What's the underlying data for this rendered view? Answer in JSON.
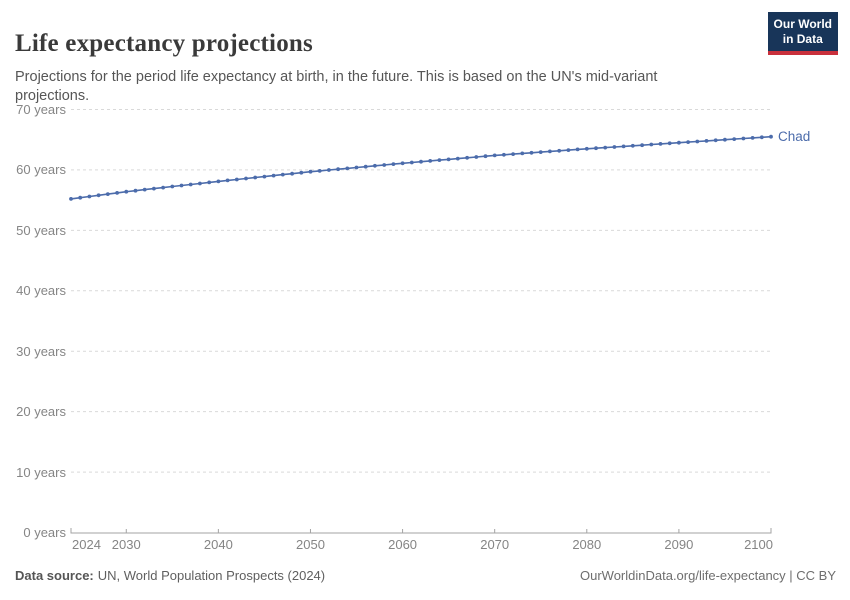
{
  "header": {
    "title": "Life expectancy projections",
    "subtitle": "Projections for the period life expectancy at birth, in the future. This is based on the UN's mid-variant projections.",
    "logo": {
      "line1": "Our World",
      "line2": "in Data"
    }
  },
  "chart_data": {
    "type": "line",
    "title": "Life expectancy projections",
    "entity": "Chad",
    "unit": "years",
    "xlim": [
      2024,
      2100
    ],
    "ylim": [
      0,
      70
    ],
    "grid": "horizontal-dashed",
    "legend_position": "end-of-line-label",
    "line_color": "#4c6cab",
    "yticks": [
      {
        "value": 0,
        "label": "0 years"
      },
      {
        "value": 10,
        "label": "10 years"
      },
      {
        "value": 20,
        "label": "20 years"
      },
      {
        "value": 30,
        "label": "30 years"
      },
      {
        "value": 40,
        "label": "40 years"
      },
      {
        "value": 50,
        "label": "50 years"
      },
      {
        "value": 60,
        "label": "60 years"
      },
      {
        "value": 70,
        "label": "70 years"
      }
    ],
    "xticks": [
      {
        "value": 2024,
        "label": "2024"
      },
      {
        "value": 2030,
        "label": "2030"
      },
      {
        "value": 2040,
        "label": "2040"
      },
      {
        "value": 2050,
        "label": "2050"
      },
      {
        "value": 2060,
        "label": "2060"
      },
      {
        "value": 2070,
        "label": "2070"
      },
      {
        "value": 2080,
        "label": "2080"
      },
      {
        "value": 2090,
        "label": "2090"
      },
      {
        "value": 2100,
        "label": "2100"
      }
    ],
    "series": [
      {
        "name": "Chad",
        "points": [
          [
            2024,
            55.2
          ],
          [
            2025,
            55.4
          ],
          [
            2026,
            55.6
          ],
          [
            2027,
            55.8
          ],
          [
            2028,
            56.0
          ],
          [
            2029,
            56.2
          ],
          [
            2030,
            56.4
          ],
          [
            2031,
            56.57
          ],
          [
            2032,
            56.74
          ],
          [
            2033,
            56.91
          ],
          [
            2034,
            57.08
          ],
          [
            2035,
            57.25
          ],
          [
            2036,
            57.42
          ],
          [
            2037,
            57.59
          ],
          [
            2038,
            57.76
          ],
          [
            2039,
            57.93
          ],
          [
            2040,
            58.1
          ],
          [
            2041,
            58.26
          ],
          [
            2042,
            58.42
          ],
          [
            2043,
            58.58
          ],
          [
            2044,
            58.74
          ],
          [
            2045,
            58.9
          ],
          [
            2046,
            59.06
          ],
          [
            2047,
            59.22
          ],
          [
            2048,
            59.38
          ],
          [
            2049,
            59.54
          ],
          [
            2050,
            59.7
          ],
          [
            2051,
            59.84
          ],
          [
            2052,
            59.98
          ],
          [
            2053,
            60.12
          ],
          [
            2054,
            60.26
          ],
          [
            2055,
            60.4
          ],
          [
            2056,
            60.54
          ],
          [
            2057,
            60.68
          ],
          [
            2058,
            60.82
          ],
          [
            2059,
            60.96
          ],
          [
            2060,
            61.1
          ],
          [
            2061,
            61.23
          ],
          [
            2062,
            61.36
          ],
          [
            2063,
            61.49
          ],
          [
            2064,
            61.62
          ],
          [
            2065,
            61.75
          ],
          [
            2066,
            61.88
          ],
          [
            2067,
            62.01
          ],
          [
            2068,
            62.14
          ],
          [
            2069,
            62.27
          ],
          [
            2070,
            62.4
          ],
          [
            2071,
            62.51
          ],
          [
            2072,
            62.62
          ],
          [
            2073,
            62.73
          ],
          [
            2074,
            62.84
          ],
          [
            2075,
            62.95
          ],
          [
            2076,
            63.06
          ],
          [
            2077,
            63.17
          ],
          [
            2078,
            63.28
          ],
          [
            2079,
            63.39
          ],
          [
            2080,
            63.5
          ],
          [
            2081,
            63.6
          ],
          [
            2082,
            63.7
          ],
          [
            2083,
            63.8
          ],
          [
            2084,
            63.9
          ],
          [
            2085,
            64.0
          ],
          [
            2086,
            64.1
          ],
          [
            2087,
            64.2
          ],
          [
            2088,
            64.3
          ],
          [
            2089,
            64.4
          ],
          [
            2090,
            64.5
          ],
          [
            2091,
            64.6
          ],
          [
            2092,
            64.7
          ],
          [
            2093,
            64.8
          ],
          [
            2094,
            64.9
          ],
          [
            2095,
            65.0
          ],
          [
            2096,
            65.1
          ],
          [
            2097,
            65.2
          ],
          [
            2098,
            65.3
          ],
          [
            2099,
            65.4
          ],
          [
            2100,
            65.5
          ]
        ]
      }
    ]
  },
  "colors": {
    "line": "#4c6cab",
    "grid": "#d9d9d9",
    "axis": "#a3a3a3",
    "logo_navy": "#183559",
    "logo_red": "#c9303c"
  },
  "footer": {
    "datasource_label": "Data source:",
    "datasource_text": "UN, World Population Prospects (2024)",
    "rights": "OurWorldinData.org/life-expectancy | CC BY"
  }
}
